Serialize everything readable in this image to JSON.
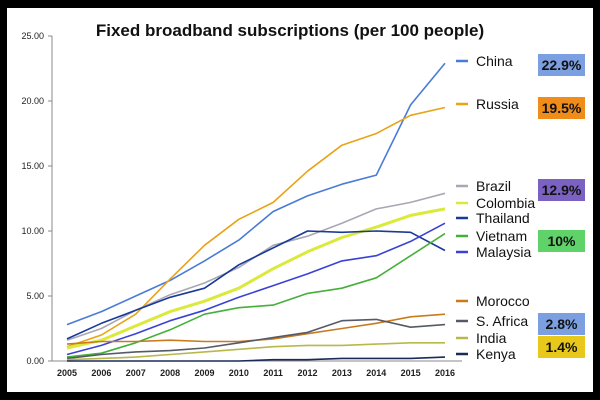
{
  "chart_data": {
    "type": "line",
    "title": "Fixed broadband subscriptions (per 100 people)",
    "xlabel": "",
    "ylabel": "",
    "x": [
      "2005",
      "2006",
      "2007",
      "2008",
      "2009",
      "2010",
      "2011",
      "2012",
      "2013",
      "2014",
      "2015",
      "2016"
    ],
    "ylim": [
      0,
      25
    ],
    "yticks": [
      "0.00",
      "5.00",
      "10.00",
      "15.00",
      "20.00",
      "25.00"
    ],
    "grid": false,
    "legend_position": "right",
    "series": [
      {
        "name": "China",
        "color": "#4a7bd8",
        "values": [
          2.8,
          3.8,
          5.0,
          6.2,
          7.7,
          9.3,
          11.5,
          12.7,
          13.6,
          14.3,
          19.7,
          22.9
        ]
      },
      {
        "name": "Russia",
        "color": "#e8a317",
        "values": [
          1.1,
          2.0,
          3.6,
          6.3,
          8.9,
          10.9,
          12.2,
          14.6,
          16.6,
          17.5,
          18.9,
          19.5
        ]
      },
      {
        "name": "Brazil",
        "color": "#a8a8b4",
        "values": [
          1.6,
          2.5,
          3.9,
          5.1,
          6.0,
          7.2,
          8.9,
          9.6,
          10.6,
          11.7,
          12.2,
          12.9
        ]
      },
      {
        "name": "Colombia",
        "color": "#dbea3a",
        "values": [
          1.0,
          1.6,
          2.7,
          3.8,
          4.6,
          5.6,
          7.1,
          8.4,
          9.5,
          10.3,
          11.2,
          11.7
        ]
      },
      {
        "name": "Thailand",
        "color": "#1a3a9a",
        "values": [
          1.7,
          2.9,
          3.9,
          4.9,
          5.6,
          7.4,
          8.7,
          10.0,
          9.9,
          10.0,
          9.9,
          8.5
        ]
      },
      {
        "name": "Vietnam",
        "color": "#44b03a",
        "values": [
          0.3,
          0.6,
          1.4,
          2.4,
          3.6,
          4.1,
          4.3,
          5.2,
          5.6,
          6.4,
          8.1,
          9.8
        ]
      },
      {
        "name": "Malaysia",
        "color": "#3a42d6",
        "values": [
          0.5,
          1.2,
          2.1,
          3.1,
          3.9,
          4.9,
          5.8,
          6.7,
          7.7,
          8.1,
          9.2,
          10.6
        ]
      },
      {
        "name": "Morocco",
        "color": "#c97a1c",
        "values": [
          1.3,
          1.5,
          1.5,
          1.6,
          1.5,
          1.5,
          1.7,
          2.1,
          2.5,
          2.9,
          3.4,
          3.6
        ]
      },
      {
        "name": "S. Africa",
        "color": "#555a66",
        "values": [
          0.2,
          0.5,
          0.7,
          0.8,
          1.0,
          1.4,
          1.8,
          2.2,
          3.1,
          3.2,
          2.6,
          2.8
        ]
      },
      {
        "name": "India",
        "color": "#b8b84a",
        "values": [
          0.1,
          0.2,
          0.3,
          0.5,
          0.7,
          0.9,
          1.1,
          1.2,
          1.2,
          1.3,
          1.4,
          1.4
        ]
      },
      {
        "name": "Kenya",
        "color": "#1a2a5a",
        "values": [
          0.0,
          0.0,
          0.0,
          0.0,
          0.0,
          0.0,
          0.1,
          0.1,
          0.2,
          0.2,
          0.2,
          0.3
        ]
      }
    ],
    "badges": [
      {
        "label": "22.9%",
        "color": "#7b9fe0",
        "series": "China"
      },
      {
        "label": "19.5%",
        "color": "#f08c1a",
        "series": "Russia"
      },
      {
        "label": "12.9%",
        "color": "#7b62c2",
        "series": "Brazil"
      },
      {
        "label": "10%",
        "color": "#5fd36a",
        "series": "Vietnam"
      },
      {
        "label": "2.8%",
        "color": "#7b9fe0",
        "series": "S. Africa"
      },
      {
        "label": "1.4%",
        "color": "#e8c81a",
        "series": "India"
      }
    ]
  }
}
